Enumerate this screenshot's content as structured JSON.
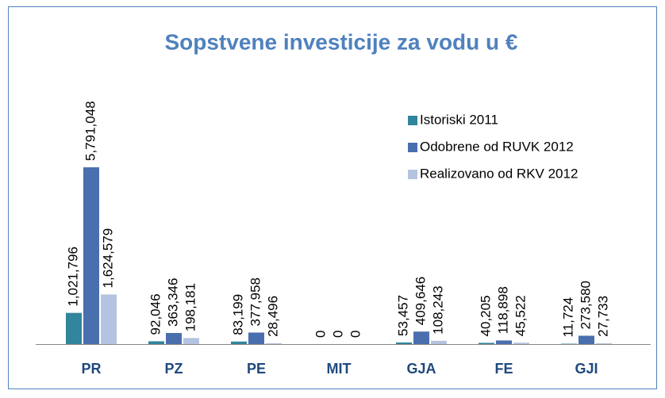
{
  "chart_data": {
    "type": "bar",
    "title": "Sopstvene investicije za vodu u €",
    "categories": [
      "PR",
      "PZ",
      "PE",
      "MIT",
      "GJA",
      "FE",
      "GJI"
    ],
    "series": [
      {
        "name": "Istoriski 2011",
        "color": "#31859c",
        "values": [
          1021796,
          92046,
          83199,
          0,
          53457,
          40205,
          11724
        ],
        "value_labels": [
          "1,021,796",
          "92,046",
          "83,199",
          "0",
          "53,457",
          "40,205",
          "11,724"
        ]
      },
      {
        "name": "Odobrene od RUVK 2012",
        "color": "#4a6fae",
        "values": [
          5791048,
          363346,
          377958,
          0,
          409646,
          118898,
          273580
        ],
        "value_labels": [
          "5,791,048",
          "363,346",
          "377,958",
          "0",
          "409,646",
          "118,898",
          "273,580"
        ]
      },
      {
        "name": "Realizovano od RKV 2012",
        "color": "#b4c3df",
        "values": [
          1624579,
          198181,
          28496,
          0,
          108243,
          45522,
          27733
        ],
        "value_labels": [
          "1,624,579",
          "198,181",
          "28,496",
          "0",
          "108,243",
          "45,522",
          "27,733"
        ]
      }
    ],
    "legend": "top-right"
  }
}
